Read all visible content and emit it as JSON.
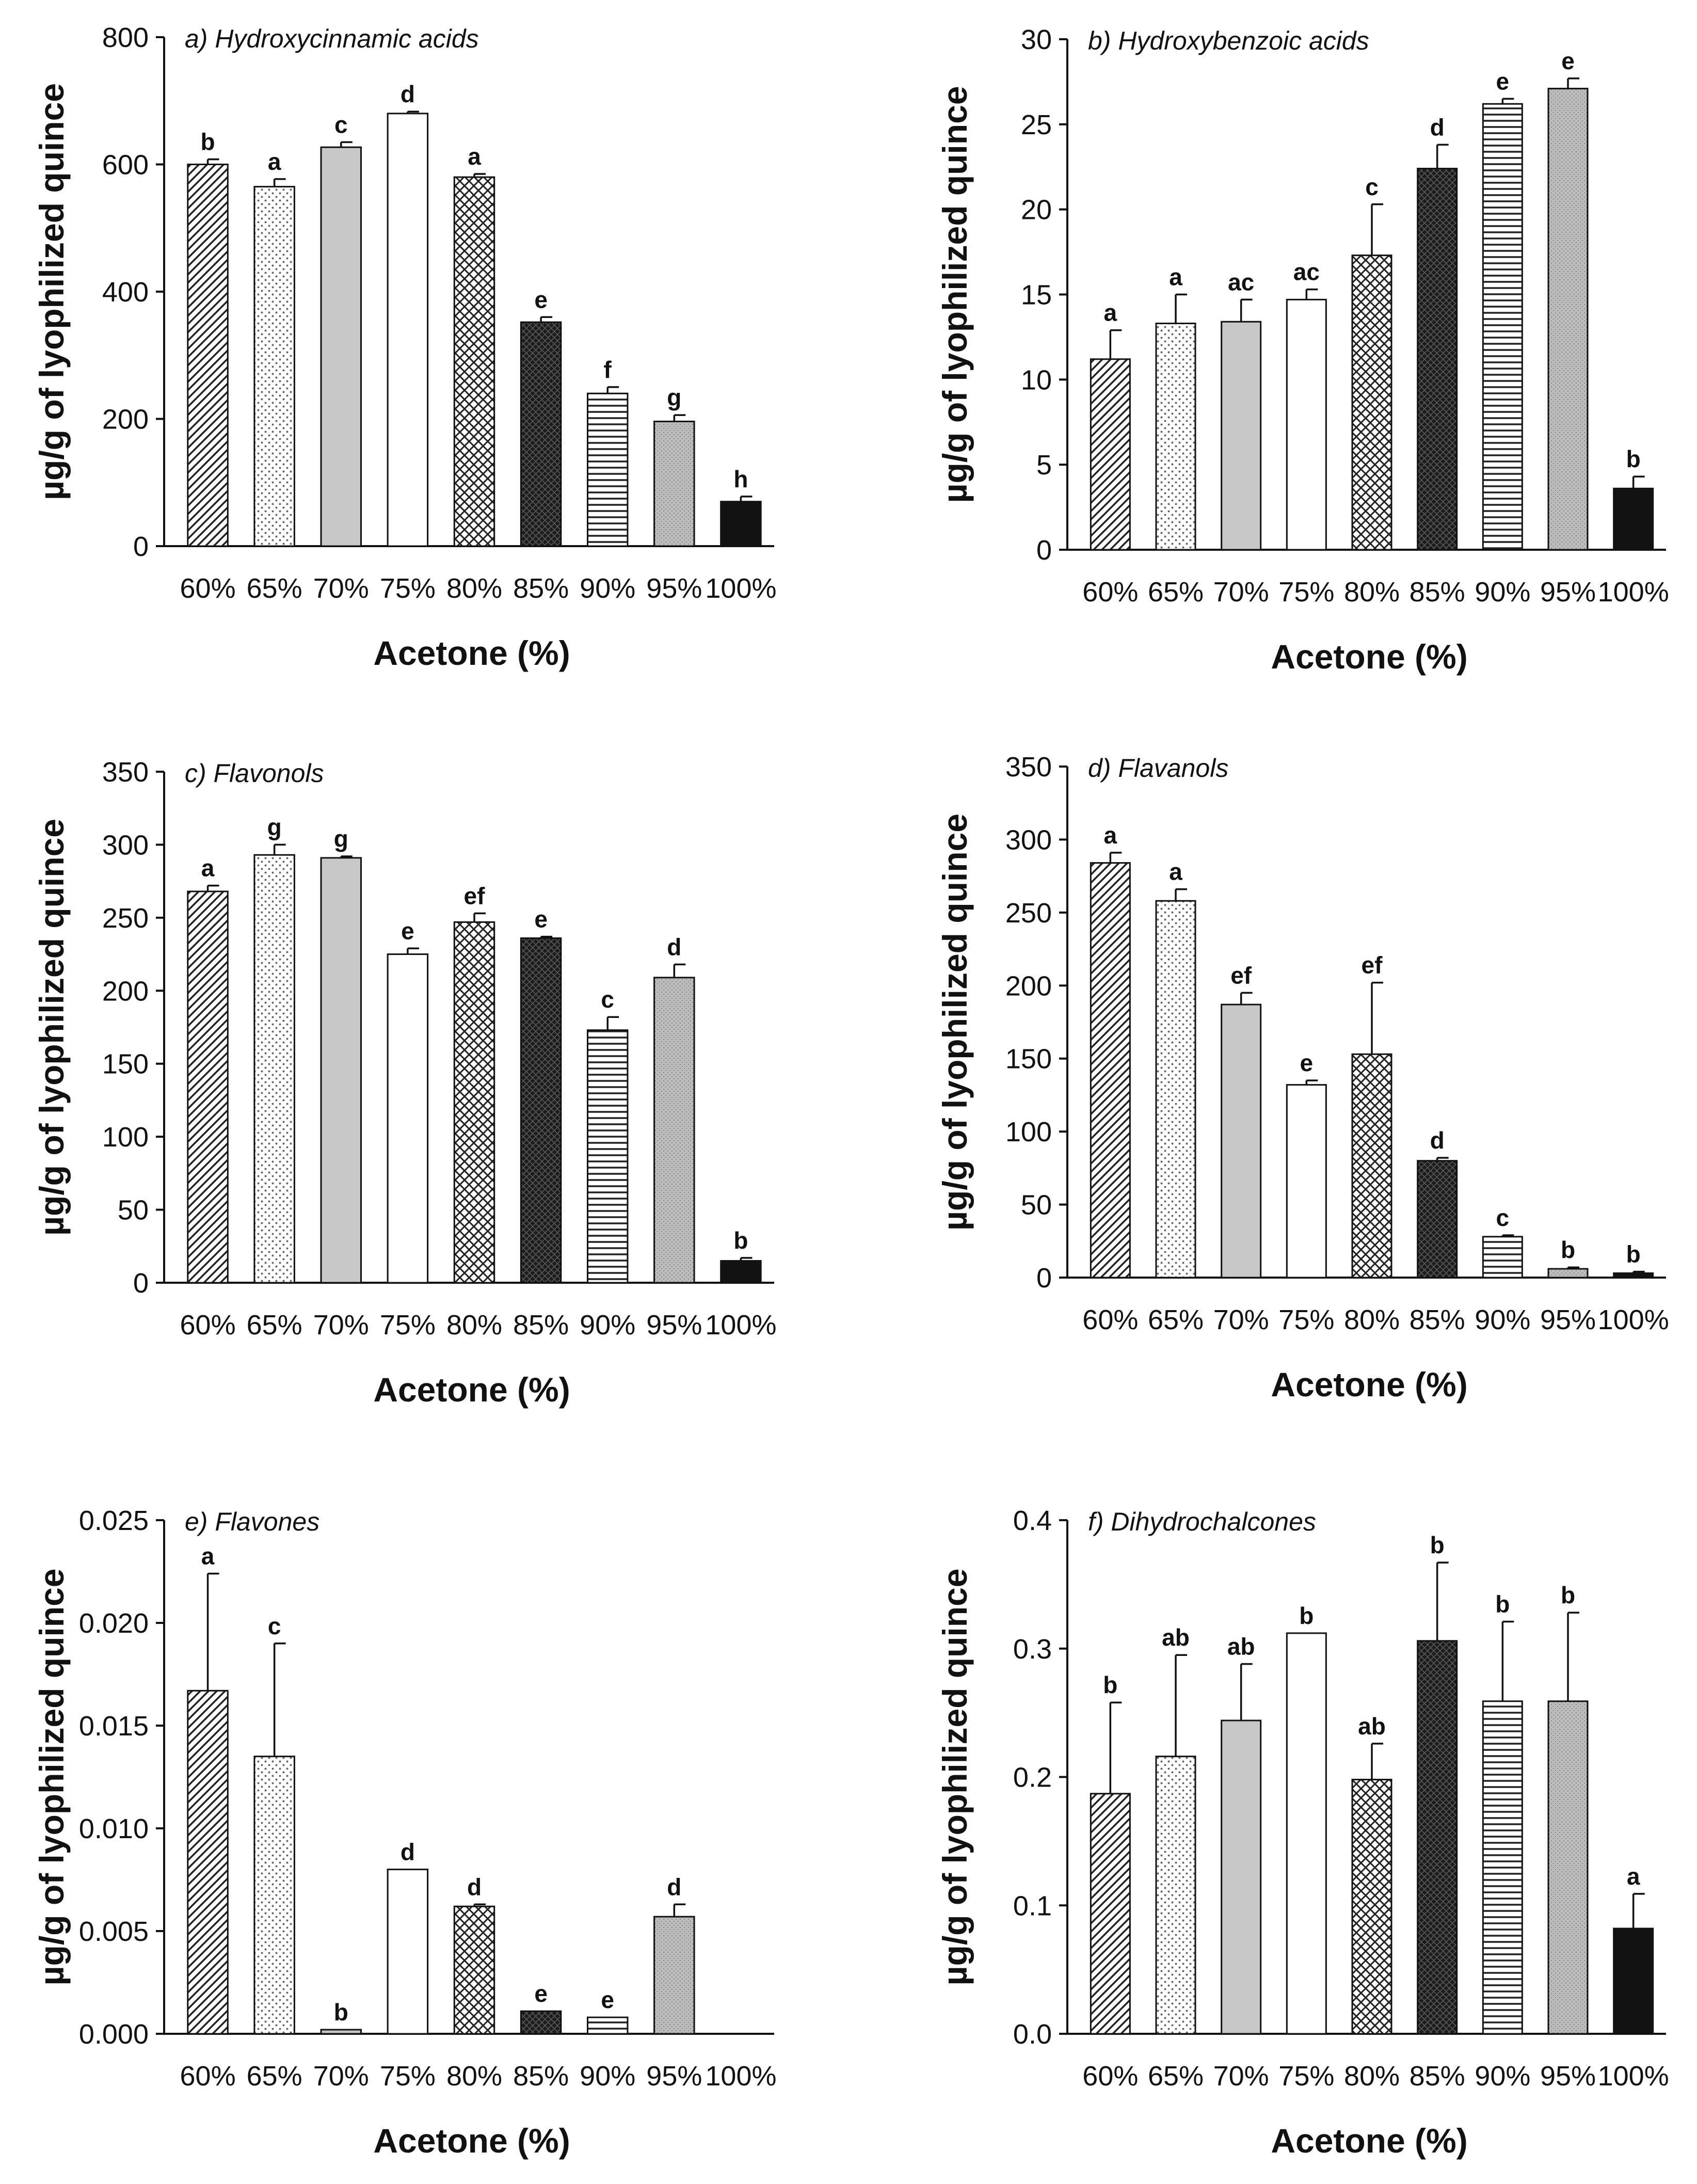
{
  "figure": {
    "categories": [
      "60%",
      "65%",
      "70%",
      "75%",
      "80%",
      "85%",
      "90%",
      "95%",
      "100%"
    ],
    "patterns": [
      "diag-hatch",
      "dots",
      "solid-gray",
      "solid-white",
      "crosshatch",
      "dark-crosshatch",
      "horizontal-lines",
      "gray-fine-dots",
      "solid-black"
    ],
    "colors": {
      "axis": "#111111",
      "gray_fill": "#c8c8c8",
      "dark_fill": "#1a1a1a"
    }
  },
  "chart_data": [
    {
      "type": "bar",
      "title": "a) Hydroxycinnamic acids",
      "xlabel": "Acetone (%)",
      "ylabel": "µg/g of lyophilized quince",
      "categories": [
        "60%",
        "65%",
        "70%",
        "75%",
        "80%",
        "85%",
        "90%",
        "95%",
        "100%"
      ],
      "values": [
        600,
        565,
        627,
        680,
        580,
        352,
        240,
        196,
        70
      ],
      "errors": [
        8,
        12,
        8,
        3,
        5,
        8,
        10,
        10,
        8
      ],
      "labels": [
        "b",
        "a",
        "c",
        "d",
        "a",
        "e",
        "f",
        "g",
        "h"
      ],
      "ylim": [
        0,
        800
      ],
      "yticks": [
        0,
        200,
        400,
        600,
        800
      ],
      "ytick_labels": [
        "0",
        "200",
        "400",
        "600",
        "800"
      ]
    },
    {
      "type": "bar",
      "title": "b) Hydroxybenzoic acids",
      "xlabel": "Acetone (%)",
      "ylabel": "µg/g of lyophilized quince",
      "categories": [
        "60%",
        "65%",
        "70%",
        "75%",
        "80%",
        "85%",
        "90%",
        "95%",
        "100%"
      ],
      "values": [
        11.2,
        13.3,
        13.4,
        14.7,
        17.3,
        22.4,
        26.2,
        27.1,
        3.6
      ],
      "errors": [
        1.7,
        1.7,
        1.3,
        0.6,
        3.0,
        1.4,
        0.3,
        0.6,
        0.7
      ],
      "labels": [
        "a",
        "a",
        "ac",
        "ac",
        "c",
        "d",
        "e",
        "e",
        "b"
      ],
      "ylim": [
        0,
        30
      ],
      "yticks": [
        0,
        5,
        10,
        15,
        20,
        25,
        30
      ],
      "ytick_labels": [
        "0",
        "5",
        "10",
        "15",
        "20",
        "25",
        "30"
      ]
    },
    {
      "type": "bar",
      "title": "c) Flavonols",
      "xlabel": "Acetone (%)",
      "ylabel": "µg/g of lyophilized quince",
      "categories": [
        "60%",
        "65%",
        "70%",
        "75%",
        "80%",
        "85%",
        "90%",
        "95%",
        "100%"
      ],
      "values": [
        268,
        293,
        291,
        225,
        247,
        236,
        173,
        209,
        15
      ],
      "errors": [
        4,
        7,
        1,
        4,
        6,
        1,
        9,
        9,
        2
      ],
      "labels": [
        "a",
        "g",
        "g",
        "e",
        "ef",
        "e",
        "c",
        "d",
        "b"
      ],
      "ylim": [
        0,
        350
      ],
      "yticks": [
        0,
        50,
        100,
        150,
        200,
        250,
        300,
        350
      ],
      "ytick_labels": [
        "0",
        "50",
        "100",
        "150",
        "200",
        "250",
        "300",
        "350"
      ]
    },
    {
      "type": "bar",
      "title": "d) Flavanols",
      "xlabel": "Acetone (%)",
      "ylabel": "µg/g of lyophilized quince",
      "categories": [
        "60%",
        "65%",
        "70%",
        "75%",
        "80%",
        "85%",
        "90%",
        "95%",
        "100%"
      ],
      "values": [
        284,
        258,
        187,
        132,
        153,
        80,
        28,
        6,
        3
      ],
      "errors": [
        7,
        8,
        8,
        3,
        49,
        2,
        1,
        1,
        1
      ],
      "labels": [
        "a",
        "a",
        "ef",
        "e",
        "ef",
        "d",
        "c",
        "b",
        "b"
      ],
      "ylim": [
        0,
        350
      ],
      "yticks": [
        0,
        50,
        100,
        150,
        200,
        250,
        300,
        350
      ],
      "ytick_labels": [
        "0",
        "50",
        "100",
        "150",
        "200",
        "250",
        "300",
        "350"
      ]
    },
    {
      "type": "bar",
      "title": "e) Flavones",
      "xlabel": "Acetone (%)",
      "ylabel": "µg/g of lyophilized quince",
      "categories": [
        "60%",
        "65%",
        "70%",
        "75%",
        "80%",
        "85%",
        "90%",
        "95%",
        "100%"
      ],
      "values": [
        0.0167,
        0.0135,
        0.0002,
        0.008,
        0.0062,
        0.0011,
        0.0008,
        0.0057,
        0
      ],
      "errors": [
        0.0057,
        0.0055,
        0,
        0,
        0.0001,
        0,
        0,
        0.0006,
        0
      ],
      "labels": [
        "a",
        "c",
        "b",
        "d",
        "d",
        "e",
        "e",
        "d",
        ""
      ],
      "ylim": [
        0,
        0.025
      ],
      "yticks": [
        0,
        0.005,
        0.01,
        0.015,
        0.02,
        0.025
      ],
      "ytick_labels": [
        "0.000",
        "0.005",
        "0.010",
        "0.015",
        "0.020",
        "0.025"
      ]
    },
    {
      "type": "bar",
      "title": "f) Dihydrochalcones",
      "xlabel": "Acetone (%)",
      "ylabel": "µg/g of lyophilized quince",
      "categories": [
        "60%",
        "65%",
        "70%",
        "75%",
        "80%",
        "85%",
        "90%",
        "95%",
        "100%"
      ],
      "values": [
        0.187,
        0.216,
        0.244,
        0.312,
        0.198,
        0.306,
        0.259,
        0.259,
        0.082
      ],
      "errors": [
        0.071,
        0.079,
        0.044,
        0,
        0.028,
        0.061,
        0.062,
        0.069,
        0.027
      ],
      "labels": [
        "b",
        "ab",
        "ab",
        "b",
        "ab",
        "b",
        "b",
        "b",
        "a"
      ],
      "ylim": [
        0,
        0.4
      ],
      "yticks": [
        0,
        0.1,
        0.2,
        0.3,
        0.4
      ],
      "ytick_labels": [
        "0.0",
        "0.1",
        "0.2",
        "0.3",
        "0.4"
      ]
    }
  ]
}
